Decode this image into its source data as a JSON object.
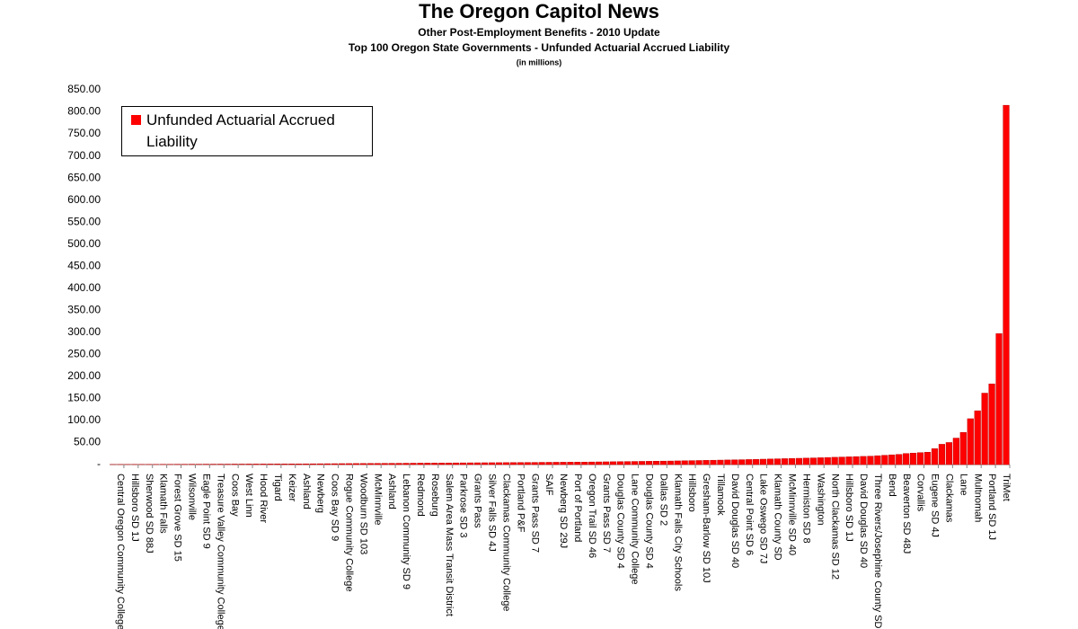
{
  "chart_data": {
    "type": "bar",
    "title": "The Oregon Capitol News",
    "subtitle": "Other Post-Employment Benefits - 2010 Update",
    "subtitle2": "Top 100 Oregon State Governments - Unfunded Actuarial Accrued Liability",
    "note": "(in millions)",
    "categories": [
      null,
      "Central Oregon Community College",
      null,
      "Hillsboro SD 1J",
      null,
      "Sherwood SD 88J",
      null,
      "Klamath Falls",
      null,
      "Forest Grove SD 15",
      null,
      "Wilsonville",
      null,
      "Eagle Point SD 9",
      null,
      "Treasure Valley Community College",
      null,
      "Coos Bay",
      null,
      "West Linn",
      null,
      "Hood River",
      null,
      "Tigard",
      null,
      "Keizer",
      null,
      "Ashland",
      null,
      "Newberg",
      null,
      "Coos Bay SD 9",
      null,
      "Rogue Community College",
      null,
      "Woodburn SD 103",
      null,
      "McMinnville",
      null,
      "Ashland",
      null,
      "Lebanon Community SD 9",
      null,
      "Redmond",
      null,
      "Roseburg",
      null,
      "Salem Area Mass Transit District",
      null,
      "Parkrose SD 3",
      null,
      "Grants Pass",
      null,
      "Silver Falls SD 4J",
      null,
      "Clackamas Community College",
      null,
      "Portland P&F",
      null,
      "Grants Pass SD 7",
      null,
      "SAIF",
      null,
      "Newberg SD 29J",
      null,
      "Port of Portland",
      null,
      "Oregon Trail SD 46",
      null,
      "Grants Pass SD 7",
      null,
      "Douglas County SD 4",
      null,
      "Lane Community College",
      null,
      "Douglas County SD 4",
      null,
      "Dallas SD 2",
      null,
      "Klamath Falls City Schools",
      null,
      "Hillsboro",
      null,
      "Gresham-Barlow SD 10J",
      null,
      "Tillamook",
      null,
      "David Douglas SD 40",
      null,
      "Central Point SD 6",
      null,
      "Lake Oswego SD 7J",
      null,
      "Klamath County SD",
      null,
      "McMinnville SD 40",
      null,
      "Hermiston SD 8",
      null,
      "Washington",
      null,
      "North Clackamas SD 12",
      null,
      "Hillsboro SD 1J",
      null,
      "David Douglas SD 40",
      null,
      "Three Rivers/Josephine County SD",
      null,
      "Bend",
      null,
      "Beaverton SD 48J",
      null,
      "Corvallis",
      null,
      "Eugene SD 4J",
      null,
      "Clackamas",
      null,
      "Lane",
      null,
      "Multnomah",
      null,
      "Portland SD 1J",
      null,
      "TriMet"
    ],
    "series": [
      {
        "name": "Unfunded Actuarial Accrued Liability",
        "color": "#ff0000",
        "values": [
          0.2,
          0.3,
          0.3,
          0.4,
          0.4,
          0.5,
          0.5,
          0.6,
          0.6,
          0.7,
          0.7,
          0.8,
          0.8,
          0.9,
          0.9,
          1.0,
          1.0,
          1.1,
          1.1,
          1.2,
          1.2,
          1.3,
          1.3,
          1.4,
          1.4,
          1.5,
          1.5,
          1.6,
          1.7,
          1.8,
          1.9,
          2.0,
          2.1,
          2.2,
          2.3,
          2.4,
          2.5,
          2.6,
          2.7,
          2.8,
          2.9,
          3.0,
          3.1,
          3.2,
          3.3,
          3.4,
          3.5,
          3.6,
          3.7,
          3.8,
          3.9,
          4.0,
          4.1,
          4.2,
          4.3,
          4.4,
          4.5,
          4.6,
          4.7,
          4.8,
          5.0,
          5.1,
          5.2,
          5.3,
          5.4,
          5.5,
          5.6,
          5.8,
          6.0,
          6.2,
          6.4,
          6.6,
          6.8,
          7.0,
          7.2,
          7.4,
          7.6,
          7.8,
          8.0,
          8.3,
          8.6,
          8.9,
          9.2,
          9.5,
          9.8,
          10.1,
          10.4,
          10.7,
          11.0,
          11.4,
          11.8,
          12.2,
          12.6,
          13.0,
          13.4,
          13.8,
          14.2,
          14.6,
          15.0,
          15.5,
          16,
          16.5,
          17,
          17.5,
          18,
          18.5,
          19,
          20,
          21,
          22,
          23,
          25,
          26,
          27,
          28,
          36,
          46,
          50,
          60,
          73,
          104,
          122,
          162,
          183,
          297,
          815
        ]
      }
    ],
    "ylim": [
      0,
      850
    ],
    "yticks": [
      {
        "value": 0,
        "label": "-"
      },
      {
        "value": 50,
        "label": "50.00"
      },
      {
        "value": 100,
        "label": "100.00"
      },
      {
        "value": 150,
        "label": "150.00"
      },
      {
        "value": 200,
        "label": "200.00"
      },
      {
        "value": 250,
        "label": "250.00"
      },
      {
        "value": 300,
        "label": "300.00"
      },
      {
        "value": 350,
        "label": "350.00"
      },
      {
        "value": 400,
        "label": "400.00"
      },
      {
        "value": 450,
        "label": "450.00"
      },
      {
        "value": 500,
        "label": "500.00"
      },
      {
        "value": 550,
        "label": "550.00"
      },
      {
        "value": 600,
        "label": "600.00"
      },
      {
        "value": 650,
        "label": "650.00"
      },
      {
        "value": 700,
        "label": "700.00"
      },
      {
        "value": 750,
        "label": "750.00"
      },
      {
        "value": 800,
        "label": "800.00"
      },
      {
        "value": 850,
        "label": "850.00"
      }
    ],
    "grid": false,
    "legend": "upper left"
  }
}
